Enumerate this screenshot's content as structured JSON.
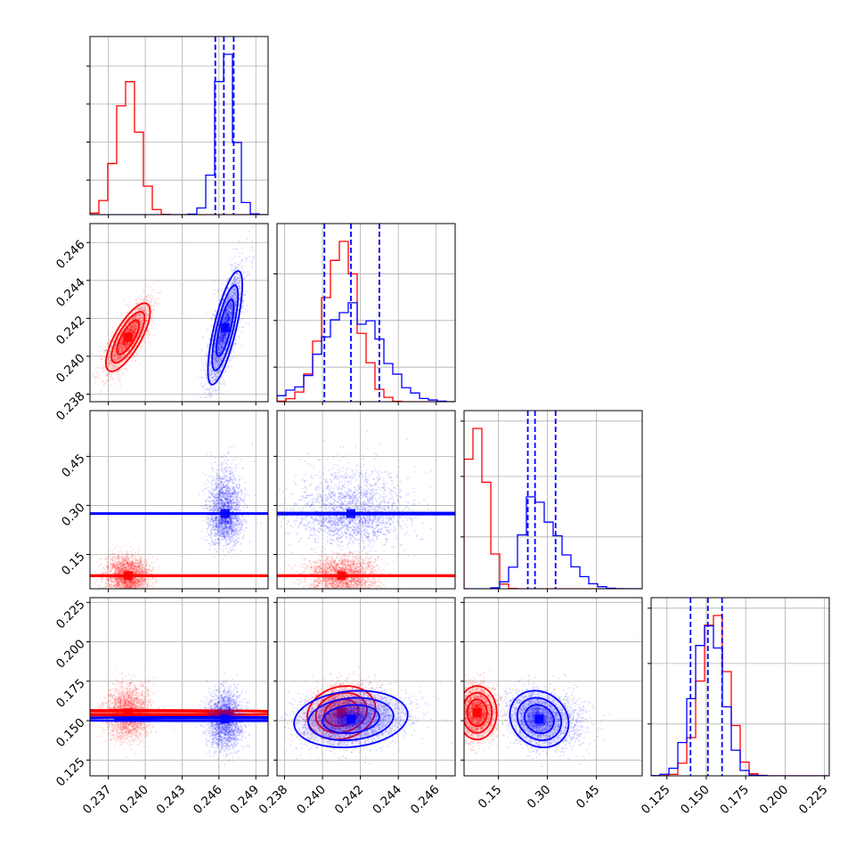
{
  "chart_data": {
    "type": "corner",
    "grid": true,
    "colors": {
      "red": "#ff0000",
      "blue": "#0000ff"
    },
    "params": [
      {
        "range": [
          0.2355,
          0.25
        ],
        "ticks": [
          0.237,
          0.24,
          0.243,
          0.246,
          0.249
        ],
        "tick_labels": [
          "0.237",
          "0.240",
          "0.243",
          "0.246",
          "0.249"
        ]
      },
      {
        "range": [
          0.2376,
          0.247
        ],
        "ticks": [
          0.238,
          0.24,
          0.242,
          0.244,
          0.246
        ],
        "tick_labels": [
          "0.238",
          "0.240",
          "0.242",
          "0.244",
          "0.246"
        ]
      },
      {
        "range": [
          0.045,
          0.59
        ],
        "ticks": [
          0.15,
          0.3,
          0.45
        ],
        "tick_labels": [
          "0.15",
          "0.30",
          "0.45"
        ]
      },
      {
        "range": [
          0.115,
          0.228
        ],
        "ticks": [
          0.125,
          0.15,
          0.175,
          0.2,
          0.225
        ],
        "tick_labels": [
          "0.125",
          "0.150",
          "0.175",
          "0.200",
          "0.225"
        ]
      }
    ],
    "series": [
      {
        "color": "red",
        "mean": [
          0.2386,
          0.241,
          0.085,
          0.155
        ],
        "sigma": [
          0.0009,
          0.0009,
          0.03,
          0.0085
        ],
        "rho": {
          "0-1": 0.75,
          "0-2": 0.0,
          "0-3": 0.0,
          "1-2": 0.0,
          "1-3": 0.15,
          "2-3": 0.0
        },
        "quantiles": []
      },
      {
        "color": "blue",
        "mean": [
          0.2465,
          0.2415,
          0.275,
          0.151
        ],
        "sigma": [
          0.0007,
          0.0015,
          0.045,
          0.009
        ],
        "rho": {
          "0-1": 0.75,
          "0-2": 0.0,
          "0-3": 0.0,
          "1-2": 0.0,
          "1-3": 0.15,
          "2-3": -0.15
        },
        "quantiles": [
          [
            0.2457,
            0.2464,
            0.2472
          ],
          [
            0.2401,
            0.2415,
            0.243
          ],
          [
            0.24,
            0.262,
            0.325
          ],
          [
            0.14,
            0.151,
            0.16
          ]
        ]
      }
    ]
  }
}
